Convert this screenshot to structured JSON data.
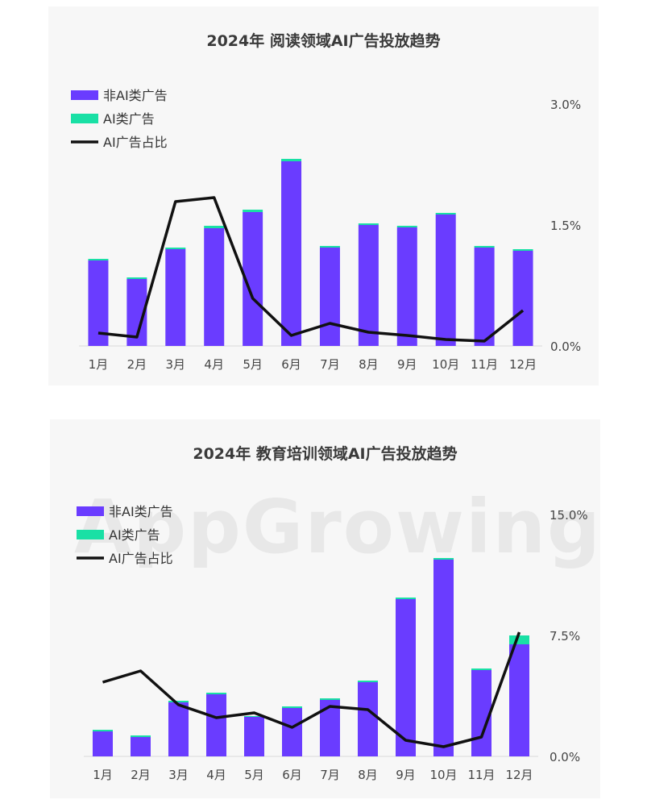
{
  "colors": {
    "non_ai": "#6a3cff",
    "ai": "#19e0a5",
    "line": "#111111",
    "grid": "#d9d9d9"
  },
  "watermark": "AppGrowing",
  "chart_data": [
    {
      "type": "bar",
      "title": "2024年  阅读领域AI广告投放趋势",
      "categories": [
        "1月",
        "2月",
        "3月",
        "4月",
        "5月",
        "6月",
        "7月",
        "8月",
        "9月",
        "10月",
        "11月",
        "12月"
      ],
      "series": [
        {
          "name": "非AI类广告",
          "kind": "stacked-bar",
          "values": [
            1.06,
            0.83,
            1.2,
            1.46,
            1.66,
            2.29,
            1.22,
            1.5,
            1.47,
            1.63,
            1.22,
            1.18
          ]
        },
        {
          "name": "AI类广告",
          "kind": "stacked-bar",
          "values": [
            0.02,
            0.02,
            0.02,
            0.03,
            0.03,
            0.03,
            0.02,
            0.02,
            0.02,
            0.02,
            0.02,
            0.02
          ]
        },
        {
          "name": "AI广告占比",
          "kind": "line",
          "axis": "right",
          "values": [
            0.16,
            0.11,
            1.79,
            1.84,
            0.59,
            0.13,
            0.28,
            0.17,
            0.13,
            0.08,
            0.06,
            0.44
          ]
        }
      ],
      "y2_ticks": [
        "0.0%",
        "1.5%",
        "3.0%"
      ],
      "y2lim": [
        0,
        3.0
      ],
      "legend": "top-left"
    },
    {
      "type": "bar",
      "title": "2024年  教育培训领域AI广告投放趋势",
      "categories": [
        "1月",
        "2月",
        "3月",
        "4月",
        "5月",
        "6月",
        "7月",
        "8月",
        "9月",
        "10月",
        "11月",
        "12月"
      ],
      "series": [
        {
          "name": "非AI类广告",
          "kind": "stacked-bar",
          "values": [
            1.55,
            1.2,
            3.35,
            3.85,
            2.45,
            3.0,
            3.5,
            4.6,
            9.75,
            12.2,
            5.35,
            6.95
          ]
        },
        {
          "name": "AI类广告",
          "kind": "stacked-bar",
          "values": [
            0.1,
            0.1,
            0.1,
            0.1,
            0.05,
            0.1,
            0.1,
            0.1,
            0.1,
            0.1,
            0.1,
            0.55
          ]
        },
        {
          "name": "AI广告占比",
          "kind": "line",
          "axis": "right",
          "values": [
            4.6,
            5.3,
            3.2,
            2.4,
            2.7,
            1.8,
            3.1,
            2.9,
            1.0,
            0.6,
            1.2,
            7.7
          ]
        }
      ],
      "y2_ticks": [
        "0.0%",
        "7.5%",
        "15.0%"
      ],
      "y2lim": [
        0,
        15.0
      ],
      "legend": "top-left"
    }
  ]
}
